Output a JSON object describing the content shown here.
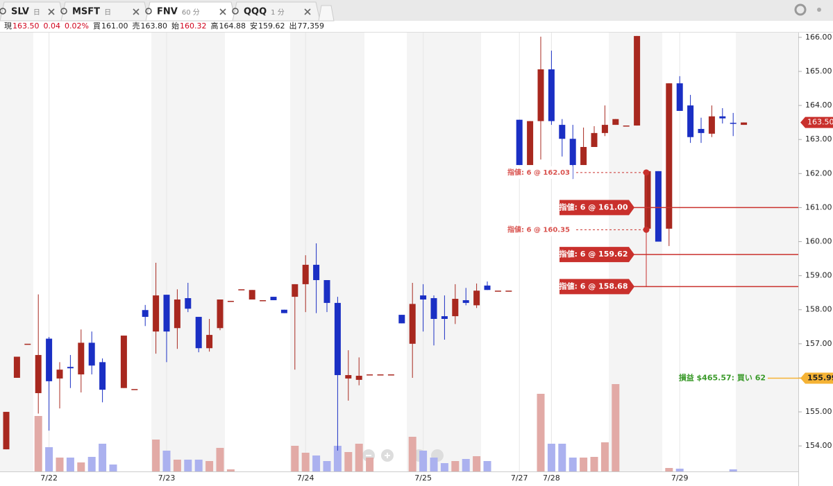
{
  "tabs": [
    {
      "name": "SLV",
      "period": "日"
    },
    {
      "name": "MSFT",
      "period": "日"
    },
    {
      "name": "FNV",
      "period": "60 分",
      "active": true
    },
    {
      "name": "QQQ",
      "period": "1 分"
    }
  ],
  "quote": [
    {
      "label": "現",
      "value": "163.50",
      "color": "#d0021b"
    },
    {
      "value": "0.04",
      "color": "#d0021b"
    },
    {
      "value": "0.02%",
      "color": "#d0021b"
    },
    {
      "label": "買",
      "value": "161.00"
    },
    {
      "label": "売",
      "value": "163.80"
    },
    {
      "label": "始",
      "value": "160.32",
      "color": "#d0021b"
    },
    {
      "label": "高",
      "value": "164.88"
    },
    {
      "label": "安",
      "value": "159.62"
    },
    {
      "label": "出",
      "value": "77,359"
    }
  ],
  "chart_data": {
    "type": "candlestick",
    "categories": [
      null,
      null,
      null,
      null,
      "7/22",
      null,
      null,
      null,
      null,
      null,
      null,
      null,
      null,
      null,
      null,
      "7/23",
      null,
      null,
      null,
      null,
      null,
      null,
      null,
      null,
      null,
      null,
      null,
      null,
      "7/24",
      null,
      null,
      null,
      null,
      null,
      null,
      null,
      null,
      null,
      null,
      "7/25",
      null,
      null,
      null,
      null,
      null,
      null,
      null,
      null,
      "7/27",
      null,
      null,
      "7/28",
      null,
      null,
      null,
      null,
      null,
      null,
      null,
      null,
      null,
      null,
      null,
      "7/29",
      null,
      null,
      null,
      null,
      null,
      null
    ],
    "open": [
      153.9,
      156.0,
      157.0,
      155.55,
      157.15,
      155.98,
      156.32,
      156.1,
      157.03,
      156.46,
      null,
      155.7,
      155.67,
      157.99,
      157.36,
      158.44,
      157.46,
      158.34,
      157.79,
      156.87,
      157.46,
      158.26,
      158.6,
      158.3,
      158.28,
      158.38,
      158.0,
      158.38,
      158.75,
      159.32,
      158.87,
      158.2,
      155.98,
      155.94,
      156.1,
      156.1,
      156.1,
      157.85,
      157.0,
      158.42,
      158.34,
      157.81,
      157.81,
      158.28,
      158.13,
      158.71,
      158.56,
      158.56,
      163.58,
      162.25,
      163.54,
      165.06,
      163.43,
      163.02,
      162.25,
      162.78,
      163.19,
      163.43,
      163.41,
      163.41,
      160.38,
      162.07,
      160.38,
      164.65,
      164.0,
      163.31,
      163.17,
      163.68,
      163.49,
      163.43
    ],
    "high": [
      155.0,
      156.62,
      157.0,
      158.45,
      157.2,
      156.46,
      156.67,
      157.42,
      157.36,
      156.57,
      null,
      157.24,
      155.67,
      158.14,
      159.38,
      158.44,
      158.6,
      158.79,
      157.79,
      157.73,
      158.3,
      158.26,
      158.6,
      158.58,
      158.28,
      158.38,
      158.0,
      158.75,
      159.6,
      159.95,
      158.87,
      158.38,
      156.81,
      156.6,
      156.1,
      156.1,
      156.1,
      157.85,
      158.79,
      158.75,
      158.42,
      158.42,
      158.75,
      158.64,
      158.77,
      158.83,
      158.56,
      158.56,
      163.58,
      163.54,
      166.02,
      165.61,
      163.6,
      163.43,
      163.35,
      163.39,
      164.0,
      163.6,
      163.41,
      166.04,
      162.07,
      162.07,
      164.65,
      164.86,
      164.31,
      163.64,
      164.0,
      163.92,
      163.78,
      163.5
    ],
    "low": [
      153.9,
      156.0,
      157.0,
      154.95,
      154.45,
      155.1,
      155.7,
      155.57,
      156.1,
      155.28,
      null,
      155.7,
      155.67,
      157.52,
      156.71,
      156.46,
      156.85,
      157.93,
      156.75,
      156.77,
      157.4,
      158.26,
      158.6,
      158.3,
      158.28,
      158.28,
      157.9,
      156.24,
      157.93,
      157.9,
      157.93,
      153.86,
      155.33,
      155.78,
      156.1,
      156.1,
      156.1,
      157.6,
      156.0,
      157.36,
      156.95,
      157.12,
      157.58,
      158.13,
      158.05,
      158.58,
      158.56,
      158.56,
      162.25,
      162.25,
      162.41,
      163.43,
      162.5,
      161.84,
      162.25,
      162.78,
      163.1,
      163.43,
      163.41,
      163.41,
      160.38,
      160.0,
      159.87,
      163.84,
      162.9,
      162.9,
      163.07,
      163.47,
      163.1,
      163.43
    ],
    "close": [
      155.0,
      156.62,
      157.0,
      156.67,
      155.9,
      156.24,
      156.28,
      157.03,
      156.36,
      155.65,
      null,
      157.24,
      155.67,
      157.79,
      158.42,
      157.36,
      158.3,
      158.03,
      156.87,
      157.26,
      158.3,
      158.26,
      158.6,
      158.58,
      158.28,
      158.28,
      157.9,
      158.75,
      159.32,
      158.87,
      158.2,
      156.08,
      156.08,
      156.06,
      156.1,
      156.1,
      156.1,
      157.6,
      158.17,
      158.3,
      157.73,
      157.73,
      158.32,
      158.2,
      158.56,
      158.58,
      158.56,
      158.56,
      162.25,
      163.54,
      165.06,
      163.54,
      163.02,
      162.25,
      162.78,
      163.19,
      163.43,
      163.6,
      163.41,
      166.04,
      162.07,
      160.0,
      164.65,
      163.84,
      163.07,
      163.19,
      163.68,
      163.62,
      163.47,
      163.5
    ],
    "volume": [
      null,
      null,
      null,
      80,
      35,
      20,
      20,
      13,
      21,
      40,
      10,
      null,
      null,
      null,
      46,
      30,
      17,
      17,
      17,
      15,
      34,
      3,
      null,
      null,
      null,
      null,
      null,
      37,
      27,
      23,
      15,
      37,
      28,
      40,
      20,
      null,
      null,
      null,
      50,
      30,
      20,
      12,
      15,
      18,
      22,
      15,
      null,
      null,
      null,
      null,
      112,
      40,
      40,
      20,
      20,
      21,
      42,
      126,
      null,
      null,
      null,
      null,
      5,
      4,
      null,
      null,
      null,
      null,
      3,
      null
    ],
    "up_color": "#a8281f",
    "down_color": "#1a2fc4",
    "volume_up_color": "#e2aaa6",
    "volume_down_color": "#abb1ef",
    "ylim": [
      153.25,
      166.14
    ],
    "yticks": [
      {
        "value": 154,
        "label": "154.00"
      },
      {
        "value": 155,
        "label": "155.00"
      },
      {
        "value": 156,
        "label": "156.00"
      },
      {
        "value": 157,
        "label": "157.00"
      },
      {
        "value": 158,
        "label": "158.00"
      },
      {
        "value": 159,
        "label": "159.00"
      },
      {
        "value": 160,
        "label": "160.00"
      },
      {
        "value": 161,
        "label": "161.00"
      },
      {
        "value": 162,
        "label": "162.00"
      },
      {
        "value": 163,
        "label": "163.00"
      },
      {
        "value": 164,
        "label": "164.00"
      },
      {
        "value": 165,
        "label": "165.00"
      },
      {
        "value": 166,
        "label": "166.00"
      }
    ],
    "orders": [
      {
        "label": "指値: 6 @ 162.03",
        "price": 162.03,
        "filled": false
      },
      {
        "label": "指値: 6 @ 161.00",
        "price": 161.0,
        "filled": true
      },
      {
        "label": "指値: 6 @ 160.35",
        "price": 160.35,
        "filled": false
      },
      {
        "label": "指値: 6 @ 159.62",
        "price": 159.62,
        "filled": true
      },
      {
        "label": "指値: 6 @ 158.68",
        "price": 158.68,
        "filled": true
      }
    ],
    "position": {
      "label": "損益 $465.57: 買い 62",
      "price": {
        "value": 155.99,
        "label": "155.99"
      }
    },
    "last_price": {
      "value": 163.5,
      "label": "163.50"
    }
  }
}
